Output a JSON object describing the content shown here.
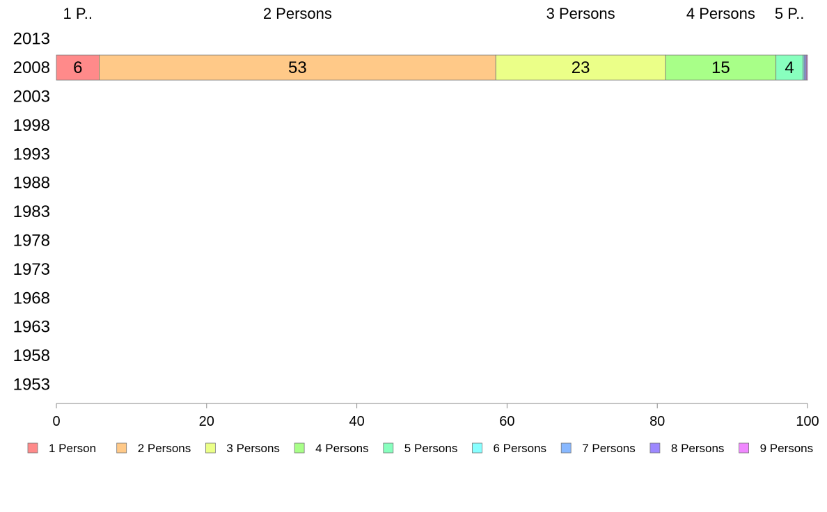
{
  "chart_data": {
    "type": "bar",
    "orientation": "horizontal",
    "stacked": true,
    "title": "",
    "xlabel": "",
    "ylabel": "",
    "xlim": [
      0,
      100
    ],
    "x_ticks": [
      "0",
      "20",
      "40",
      "60",
      "80",
      "100"
    ],
    "categories": [
      "2013",
      "2008",
      "2003",
      "1998",
      "1993",
      "1988",
      "1983",
      "1978",
      "1973",
      "1968",
      "1963",
      "1958",
      "1953"
    ],
    "top_labels": [
      "1 P..",
      "2 Persons",
      "3 Persons",
      "4 Persons",
      "5 P..",
      "",
      "",
      "",
      ""
    ],
    "series": [
      {
        "name": "1 Person",
        "color": "#ff8a8a",
        "label": "6",
        "values": [
          null,
          5.7,
          null,
          null,
          null,
          null,
          null,
          null,
          null,
          null,
          null,
          null,
          null
        ]
      },
      {
        "name": "2 Persons",
        "color": "#ffc988",
        "label": "53",
        "values": [
          null,
          52.8,
          null,
          null,
          null,
          null,
          null,
          null,
          null,
          null,
          null,
          null,
          null
        ]
      },
      {
        "name": "3 Persons",
        "color": "#ebff88",
        "label": "23",
        "values": [
          null,
          22.6,
          null,
          null,
          null,
          null,
          null,
          null,
          null,
          null,
          null,
          null,
          null
        ]
      },
      {
        "name": "4 Persons",
        "color": "#a8ff88",
        "label": "15",
        "values": [
          null,
          14.7,
          null,
          null,
          null,
          null,
          null,
          null,
          null,
          null,
          null,
          null,
          null
        ]
      },
      {
        "name": "5 Persons",
        "color": "#88ffbe",
        "label": "4",
        "values": [
          null,
          3.6,
          null,
          null,
          null,
          null,
          null,
          null,
          null,
          null,
          null,
          null,
          null
        ]
      },
      {
        "name": "6 Persons",
        "color": "#88ffff",
        "label": "",
        "values": [
          null,
          0.15,
          null,
          null,
          null,
          null,
          null,
          null,
          null,
          null,
          null,
          null,
          null
        ]
      },
      {
        "name": "7 Persons",
        "color": "#88b8ff",
        "label": "",
        "values": [
          null,
          0.15,
          null,
          null,
          null,
          null,
          null,
          null,
          null,
          null,
          null,
          null,
          null
        ]
      },
      {
        "name": "8 Persons",
        "color": "#9d88ff",
        "label": "",
        "values": [
          null,
          0.15,
          null,
          null,
          null,
          null,
          null,
          null,
          null,
          null,
          null,
          null,
          null
        ]
      },
      {
        "name": "9 Persons",
        "color": "#f088ff",
        "label": "",
        "values": [
          null,
          0.15,
          null,
          null,
          null,
          null,
          null,
          null,
          null,
          null,
          null,
          null,
          null
        ]
      }
    ],
    "legend_position": "bottom",
    "grid": false
  }
}
